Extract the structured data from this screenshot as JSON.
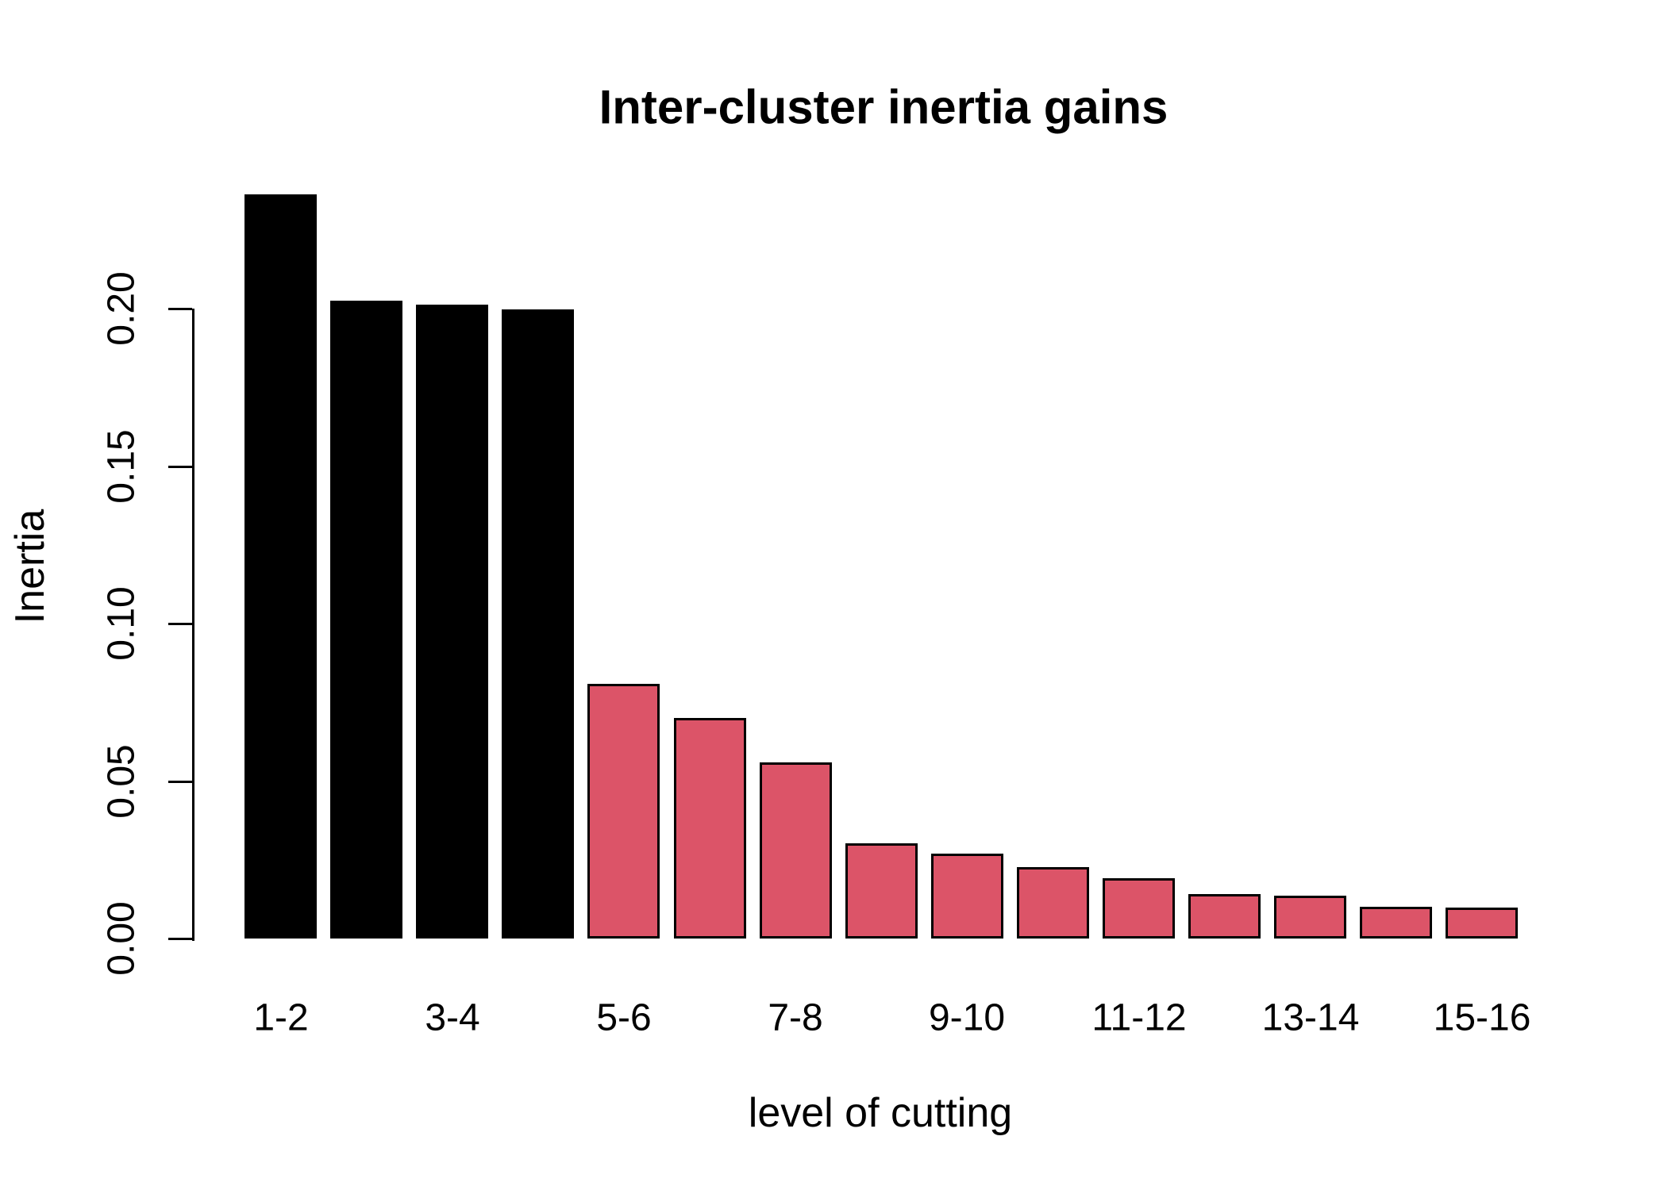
{
  "chart_data": {
    "type": "bar",
    "title": "Inter-cluster inertia gains",
    "xlabel": "level of cutting",
    "ylabel": "Inertia",
    "values": [
      0.2363,
      0.2025,
      0.2013,
      0.1998,
      0.0809,
      0.07,
      0.0559,
      0.0302,
      0.027,
      0.0227,
      0.0191,
      0.0141,
      0.0136,
      0.0101,
      0.0098
    ],
    "bar_colors": [
      "#000000",
      "#000000",
      "#000000",
      "#000000",
      "#DC5468",
      "#DC5468",
      "#DC5468",
      "#DC5468",
      "#DC5468",
      "#DC5468",
      "#DC5468",
      "#DC5468",
      "#DC5468",
      "#DC5468",
      "#DC5468"
    ],
    "bar_border_color": "#000000",
    "x_tick_labels": [
      {
        "label": "1-2",
        "bar": 0
      },
      {
        "label": "3-4",
        "bar": 2
      },
      {
        "label": "5-6",
        "bar": 4
      },
      {
        "label": "7-8",
        "bar": 6
      },
      {
        "label": "9-10",
        "bar": 8
      },
      {
        "label": "11-12",
        "bar": 10
      },
      {
        "label": "13-14",
        "bar": 12
      },
      {
        "label": "15-16",
        "bar": 14
      }
    ],
    "y_ticks": [
      {
        "value": 0.0,
        "label": "0.00"
      },
      {
        "value": 0.05,
        "label": "0.05"
      },
      {
        "value": 0.1,
        "label": "0.10"
      },
      {
        "value": 0.15,
        "label": "0.15"
      },
      {
        "value": 0.2,
        "label": "0.20"
      }
    ],
    "ylim": [
      0,
      0.2363
    ],
    "grid": false,
    "legend": null
  }
}
